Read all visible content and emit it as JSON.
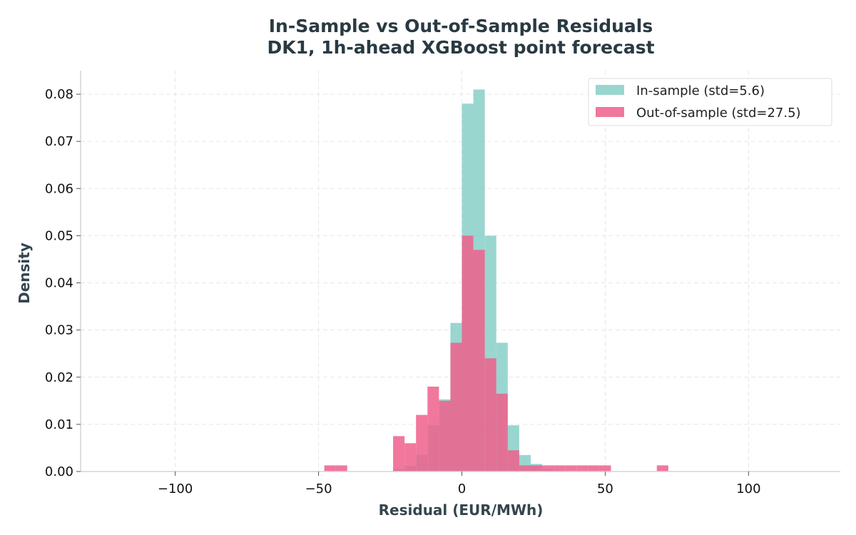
{
  "chart_data": {
    "type": "histogram",
    "title": "In-Sample vs Out-of-Sample Residuals",
    "subtitle": "DK1, 1h-ahead XGBoost point forecast",
    "xlabel": "Residual (EUR/MWh)",
    "ylabel": "Density",
    "xlim": [
      -133,
      132
    ],
    "ylim": [
      0,
      0.085
    ],
    "x_ticks": [
      {
        "value": -100,
        "label": "−100"
      },
      {
        "value": -50,
        "label": "−50"
      },
      {
        "value": 0,
        "label": "0"
      },
      {
        "value": 50,
        "label": "50"
      },
      {
        "value": 100,
        "label": "100"
      }
    ],
    "y_ticks": [
      {
        "value": 0.0,
        "label": "0.00"
      },
      {
        "value": 0.01,
        "label": "0.01"
      },
      {
        "value": 0.02,
        "label": "0.02"
      },
      {
        "value": 0.03,
        "label": "0.03"
      },
      {
        "value": 0.04,
        "label": "0.04"
      },
      {
        "value": 0.05,
        "label": "0.05"
      },
      {
        "value": 0.06,
        "label": "0.06"
      },
      {
        "value": 0.07,
        "label": "0.07"
      },
      {
        "value": 0.08,
        "label": "0.08"
      }
    ],
    "grid": true,
    "legend_position": "top-right",
    "series": [
      {
        "name": "In-sample (std=5.6)",
        "color": "#82cdc4",
        "bin_width": 4,
        "bin_start": -24,
        "values": [
          0.0005,
          0.0012,
          0.0035,
          0.0098,
          0.0153,
          0.0315,
          0.078,
          0.081,
          0.05,
          0.0273,
          0.0098,
          0.0035,
          0.0016,
          0.0005,
          0.0002,
          0.0001
        ]
      },
      {
        "name": "Out-of-sample (std=27.5)",
        "color": "#ee5f8c",
        "bin_width": 4,
        "bin_start": -48,
        "values": [
          0.0013,
          0.0013,
          0,
          0,
          0,
          0,
          0.0075,
          0.006,
          0.012,
          0.018,
          0.015,
          0.0273,
          0.05,
          0.047,
          0.024,
          0.0165,
          0.0045,
          0.0013,
          0.0013,
          0.0013,
          0.0013,
          0.0013,
          0.0013,
          0.0013,
          0.0013,
          0,
          0,
          0,
          0,
          0.0013
        ]
      }
    ]
  }
}
